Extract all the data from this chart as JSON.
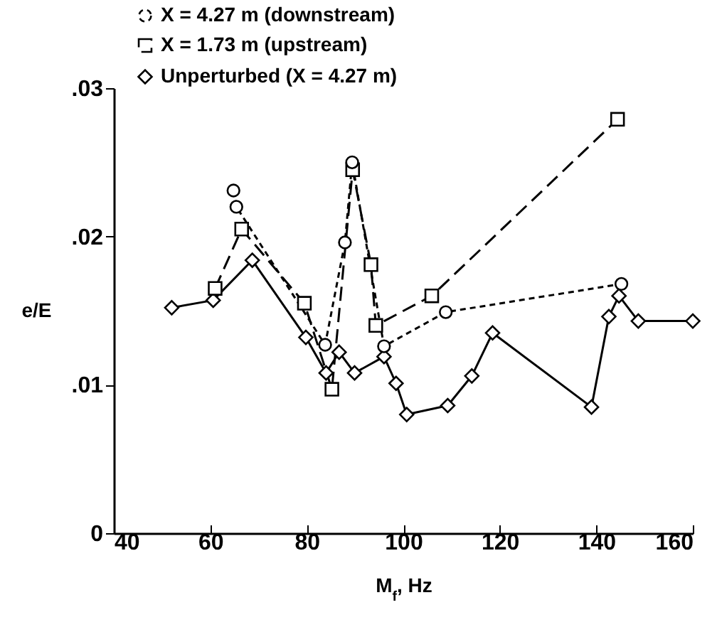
{
  "chart_data": {
    "type": "line",
    "xlabel": "M$_{f}$, Hz",
    "ylabel": "e/E",
    "xlim": [
      40,
      160
    ],
    "xticks": [
      40,
      60,
      80,
      100,
      120,
      140,
      160
    ],
    "ylim": [
      0,
      0.03
    ],
    "yticks": [
      {
        "value": 0,
        "label": "0"
      },
      {
        "value": 0.01,
        "label": ".01"
      },
      {
        "value": 0.02,
        "label": ".02"
      },
      {
        "value": 0.03,
        "label": ".03"
      }
    ],
    "legend": "top left",
    "grid": false,
    "series": [
      {
        "name": "X = 4.27 m (downstream)",
        "color": "#000000",
        "marker": "circle",
        "line_style": "dotted",
        "x": [
          64.8,
          65.4,
          83.8,
          87.9,
          89.4,
          96,
          108.8,
          145.2
        ],
        "values": [
          0.0231,
          0.022,
          0.0127,
          0.0196,
          0.025,
          0.0126,
          0.0149,
          0.0168
        ]
      },
      {
        "name": "X = 1.73 m (upstream)",
        "color": "#000000",
        "marker": "square",
        "line_style": "dashed",
        "x": [
          61,
          66.5,
          79.5,
          85.2,
          89.5,
          93.3,
          94.3,
          105.9,
          144.4
        ],
        "values": [
          0.0165,
          0.0205,
          0.0155,
          0.0097,
          0.0245,
          0.0181,
          0.014,
          0.016,
          0.0279
        ]
      },
      {
        "name": "Unperturbed (X = 4.27 m)",
        "color": "#000000",
        "marker": "diamond",
        "line_style": "solid",
        "x": [
          52,
          60.6,
          68.7,
          79.8,
          84,
          86.7,
          89.9,
          96,
          98.5,
          100.7,
          109.2,
          114.2,
          118.5,
          139,
          142.6,
          144.7,
          148.7,
          160
        ],
        "values": [
          0.0152,
          0.0157,
          0.0184,
          0.0132,
          0.0108,
          0.0122,
          0.0108,
          0.0119,
          0.0101,
          0.008,
          0.0086,
          0.0106,
          0.0135,
          0.0085,
          0.0146,
          0.016,
          0.0143,
          0.0143
        ]
      }
    ]
  }
}
